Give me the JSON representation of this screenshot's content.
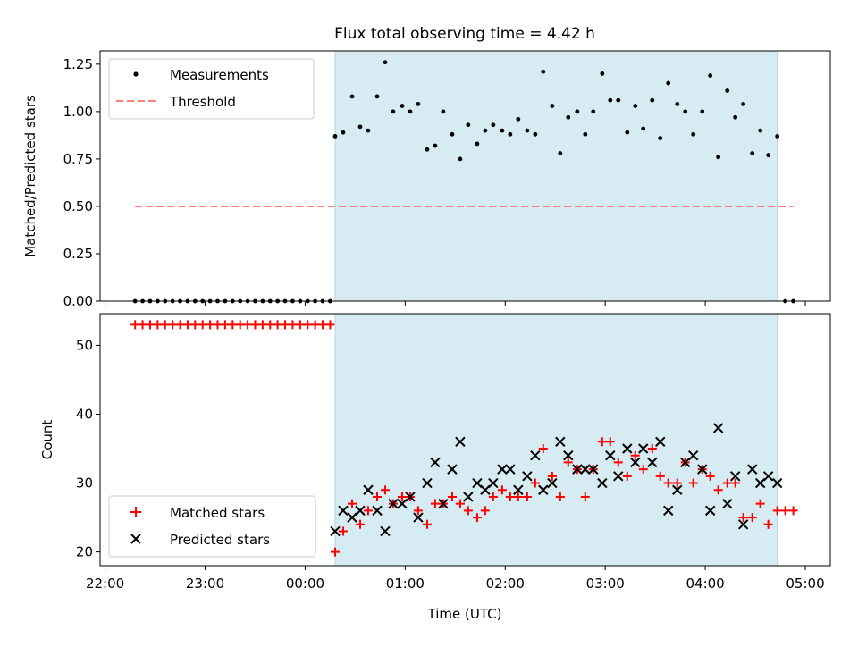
{
  "chart_data": [
    {
      "type": "scatter",
      "title": "Flux total observing time = 4.42 h",
      "xlabel": "",
      "ylabel": "Matched/Predicted stars",
      "x_unit": "hours since 22:00 UTC",
      "xlim": [
        -0.05,
        7.25
      ],
      "ylim": [
        0.0,
        1.32
      ],
      "yticks": [
        "0.00",
        "0.25",
        "0.50",
        "0.75",
        "1.00",
        "1.25"
      ],
      "yticks_values": [
        0.0,
        0.25,
        0.5,
        0.75,
        1.0,
        1.25
      ],
      "observing_window": [
        2.3,
        6.72
      ],
      "threshold": {
        "value": 0.5,
        "x_range": [
          0.3,
          6.88
        ],
        "color": "#ff7f7f"
      },
      "legend_placement": "top-left",
      "legend": [
        "Measurements",
        "Threshold"
      ],
      "series": [
        {
          "name": "Measurements",
          "x": [
            0.3,
            0.375,
            0.45,
            0.525,
            0.6,
            0.675,
            0.75,
            0.825,
            0.9,
            0.975,
            1.05,
            1.125,
            1.2,
            1.275,
            1.35,
            1.425,
            1.5,
            1.575,
            1.65,
            1.725,
            1.8,
            1.875,
            1.95,
            2.025,
            2.1,
            2.175,
            2.25,
            2.3,
            2.38,
            2.47,
            2.55,
            2.63,
            2.72,
            2.8,
            2.88,
            2.97,
            3.05,
            3.13,
            3.22,
            3.3,
            3.38,
            3.47,
            3.55,
            3.63,
            3.72,
            3.8,
            3.88,
            3.97,
            4.05,
            4.13,
            4.22,
            4.3,
            4.38,
            4.47,
            4.55,
            4.63,
            4.72,
            4.8,
            4.88,
            4.97,
            5.05,
            5.13,
            5.22,
            5.3,
            5.38,
            5.47,
            5.55,
            5.63,
            5.72,
            5.8,
            5.88,
            5.97,
            6.05,
            6.13,
            6.22,
            6.3,
            6.38,
            6.47,
            6.55,
            6.63,
            6.72,
            6.8,
            6.88
          ],
          "values": [
            0,
            0,
            0,
            0,
            0,
            0,
            0,
            0,
            0,
            0,
            0,
            0,
            0,
            0,
            0,
            0,
            0,
            0,
            0,
            0,
            0,
            0,
            0,
            0,
            0,
            0,
            0,
            0.87,
            0.89,
            1.08,
            0.92,
            0.9,
            1.08,
            1.26,
            1.0,
            1.03,
            1.0,
            1.04,
            0.8,
            0.82,
            1.0,
            0.88,
            0.75,
            0.93,
            0.83,
            0.9,
            0.93,
            0.9,
            0.88,
            0.96,
            0.9,
            0.88,
            1.21,
            1.03,
            0.78,
            0.97,
            1.0,
            0.88,
            1.0,
            1.2,
            1.06,
            1.06,
            0.89,
            1.03,
            0.91,
            1.06,
            0.86,
            1.15,
            1.04,
            1.0,
            0.88,
            1.0,
            1.19,
            0.76,
            1.11,
            0.97,
            1.04,
            0.78,
            0.9,
            0.77,
            0.87,
            0,
            0
          ]
        }
      ]
    },
    {
      "type": "scatter",
      "title": "",
      "xlabel": "Time (UTC)",
      "ylabel": "Count",
      "x_unit": "hours since 22:00 UTC",
      "xlim": [
        -0.05,
        7.25
      ],
      "ylim": [
        18,
        54.6
      ],
      "yticks": [
        "20",
        "30",
        "40",
        "50"
      ],
      "yticks_values": [
        20,
        30,
        40,
        50
      ],
      "xticks": [
        "22:00",
        "23:00",
        "00:00",
        "01:00",
        "02:00",
        "03:00",
        "04:00",
        "05:00"
      ],
      "xticks_values": [
        0,
        1,
        2,
        3,
        4,
        5,
        6,
        7
      ],
      "observing_window": [
        2.3,
        6.72
      ],
      "legend_placement": "bottom-left",
      "legend": [
        "Matched stars",
        "Predicted stars"
      ],
      "series": [
        {
          "name": "Matched stars",
          "marker": "+",
          "color": "#ff0000",
          "x": [
            0.3,
            0.375,
            0.45,
            0.525,
            0.6,
            0.675,
            0.75,
            0.825,
            0.9,
            0.975,
            1.05,
            1.125,
            1.2,
            1.275,
            1.35,
            1.425,
            1.5,
            1.575,
            1.65,
            1.725,
            1.8,
            1.875,
            1.95,
            2.025,
            2.1,
            2.175,
            2.25,
            2.3,
            2.38,
            2.47,
            2.55,
            2.63,
            2.72,
            2.8,
            2.88,
            2.97,
            3.05,
            3.13,
            3.22,
            3.3,
            3.38,
            3.47,
            3.55,
            3.63,
            3.72,
            3.8,
            3.88,
            3.97,
            4.05,
            4.13,
            4.22,
            4.3,
            4.38,
            4.47,
            4.55,
            4.63,
            4.72,
            4.8,
            4.88,
            4.97,
            5.05,
            5.13,
            5.22,
            5.3,
            5.38,
            5.47,
            5.55,
            5.63,
            5.72,
            5.8,
            5.88,
            5.97,
            6.05,
            6.13,
            6.22,
            6.3,
            6.38,
            6.47,
            6.55,
            6.63,
            6.72,
            6.8,
            6.88
          ],
          "values": [
            53,
            53,
            53,
            53,
            53,
            53,
            53,
            53,
            53,
            53,
            53,
            53,
            53,
            53,
            53,
            53,
            53,
            53,
            53,
            53,
            53,
            53,
            53,
            53,
            53,
            53,
            53,
            20,
            23,
            27,
            24,
            26,
            28,
            29,
            27,
            28,
            28,
            26,
            24,
            27,
            27,
            28,
            27,
            26,
            25,
            26,
            28,
            29,
            28,
            28,
            28,
            30,
            35,
            31,
            28,
            33,
            32,
            28,
            32,
            36,
            36,
            33,
            31,
            34,
            32,
            35,
            31,
            30,
            30,
            33,
            30,
            32,
            31,
            29,
            30,
            30,
            25,
            25,
            27,
            24,
            26,
            26,
            26
          ]
        },
        {
          "name": "Predicted stars",
          "marker": "x",
          "color": "#000000",
          "x": [
            2.3,
            2.38,
            2.47,
            2.55,
            2.63,
            2.72,
            2.8,
            2.88,
            2.97,
            3.05,
            3.13,
            3.22,
            3.3,
            3.38,
            3.47,
            3.55,
            3.63,
            3.72,
            3.8,
            3.88,
            3.97,
            4.05,
            4.13,
            4.22,
            4.3,
            4.38,
            4.47,
            4.55,
            4.63,
            4.72,
            4.8,
            4.88,
            4.97,
            5.05,
            5.13,
            5.22,
            5.3,
            5.38,
            5.47,
            5.55,
            5.63,
            5.72,
            5.8,
            5.88,
            5.97,
            6.05,
            6.13,
            6.22,
            6.3,
            6.38,
            6.47,
            6.55,
            6.63,
            6.72
          ],
          "values": [
            23,
            26,
            25,
            26,
            29,
            26,
            23,
            27,
            27,
            28,
            25,
            30,
            33,
            27,
            32,
            36,
            28,
            30,
            29,
            30,
            32,
            32,
            29,
            31,
            34,
            29,
            30,
            36,
            34,
            32,
            32,
            32,
            30,
            34,
            31,
            35,
            33,
            35,
            33,
            36,
            26,
            29,
            33,
            34,
            32,
            26,
            38,
            27,
            31,
            24,
            32,
            30,
            31,
            30
          ]
        }
      ]
    }
  ]
}
